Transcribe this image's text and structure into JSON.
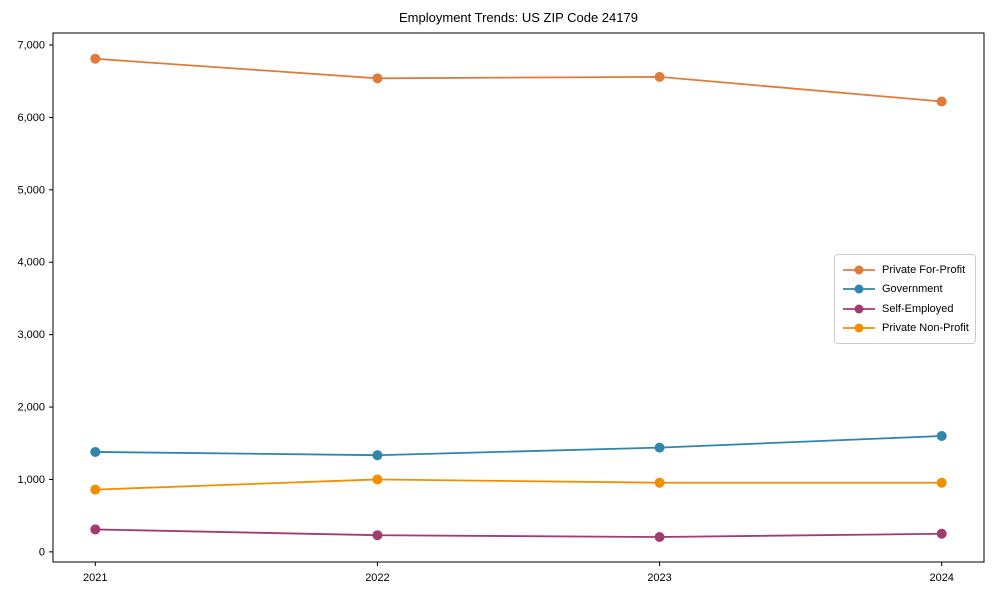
{
  "chart_data": {
    "type": "line",
    "title": "Employment Trends: US ZIP Code 24179",
    "xlabel": "",
    "ylabel": "",
    "x_categories": [
      "2021",
      "2022",
      "2023",
      "2024"
    ],
    "series": [
      {
        "name": "Private For-Profit",
        "color": "#E07B39",
        "values": [
          6810,
          6540,
          6560,
          6220
        ]
      },
      {
        "name": "Government",
        "color": "#2E86AB",
        "values": [
          1380,
          1335,
          1440,
          1600
        ]
      },
      {
        "name": "Self-Employed",
        "color": "#A23B72",
        "values": [
          310,
          230,
          205,
          250
        ]
      },
      {
        "name": "Private Non-Profit",
        "color": "#F18F01",
        "values": [
          860,
          1000,
          955,
          955
        ]
      }
    ],
    "yticks": [
      0,
      1000,
      2000,
      3000,
      4000,
      5000,
      6000,
      7000
    ],
    "ytick_labels": [
      "0",
      "1,000",
      "2,000",
      "3,000",
      "4,000",
      "5,000",
      "6,000",
      "7,000"
    ],
    "ylim": [
      -140,
      7166
    ],
    "grid": false,
    "legend_position": "center-right",
    "marker": "circle",
    "axis_color": "#000000",
    "legend_border_color": "#cccccc"
  }
}
